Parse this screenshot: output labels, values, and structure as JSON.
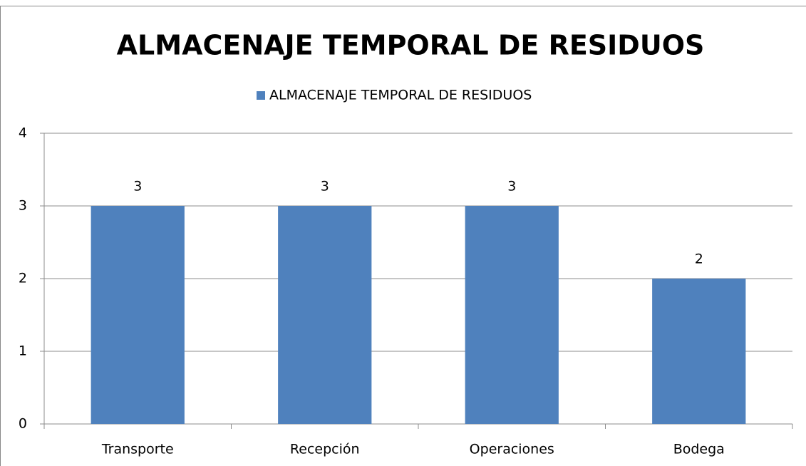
{
  "chart_data": {
    "type": "bar",
    "title": "ALMACENAJE TEMPORAL DE RESIDUOS",
    "categories": [
      "Transporte",
      "Recepción",
      "Operaciones",
      "Bodega"
    ],
    "series": [
      {
        "name": "ALMACENAJE TEMPORAL DE RESIDUOS",
        "color": "#4f81bd",
        "values": [
          3,
          3,
          3,
          2
        ]
      }
    ],
    "ylim": [
      0,
      4
    ],
    "yticks": [
      0,
      1,
      2,
      3,
      4
    ],
    "grid": true,
    "legend": "top",
    "data_labels": true
  }
}
